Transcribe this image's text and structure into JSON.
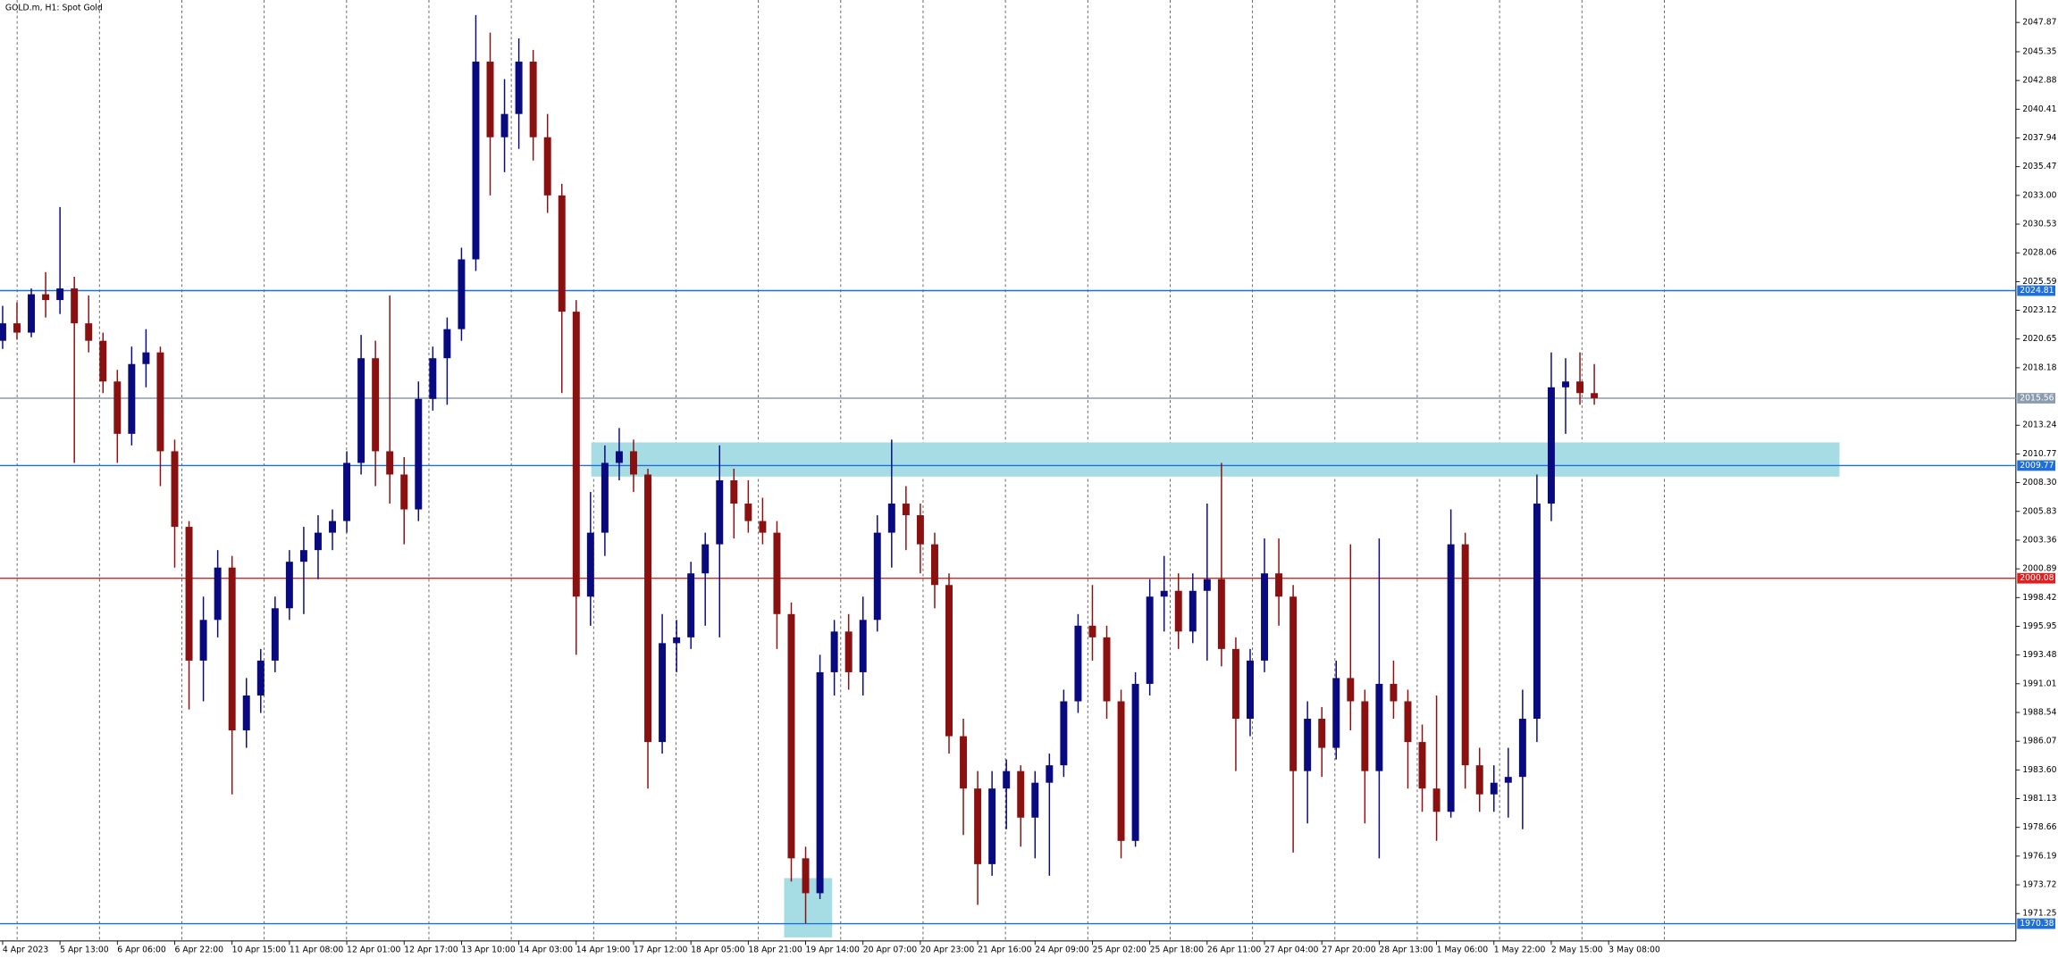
{
  "chart_data": {
    "type": "candlestick",
    "title": "GOLD.m, H1:  Spot Gold",
    "up_color": "#0a0a80",
    "down_color": "#8b1010",
    "open": [
      2020.5,
      2022.0,
      2021.2,
      2024.5,
      2024.0,
      2025.0,
      2022.0,
      2020.5,
      2017.0,
      2012.5,
      2018.5,
      2019.5,
      2011.0,
      2004.5,
      1993.0,
      1996.5,
      2001.0,
      1987.0,
      1990.0,
      1993.0,
      1997.5,
      2001.5,
      2002.5,
      2004.0,
      2005.0,
      2010.0,
      2019.0,
      2011.0,
      2009.0,
      2006.0,
      2015.5,
      2019.0,
      2021.5,
      2027.5,
      2044.5,
      2038.0,
      2040.0,
      2044.5,
      2038.0,
      2033.0,
      2023.0,
      1998.5,
      2004.0,
      2010.0,
      2011.0,
      2009.0,
      1986.0,
      1994.5,
      1995.0,
      2000.5,
      2003.0,
      2008.5,
      2006.5,
      2005.0,
      2004.0,
      1997.0,
      1976.0,
      1973.0,
      1992.0,
      1995.5,
      1992.0,
      1996.5,
      2004.0,
      2006.5,
      2005.5,
      2003.0,
      1999.5,
      1986.5,
      1982.0,
      1975.5,
      1982.0,
      1983.5,
      1979.5,
      1982.5,
      1984.0,
      1989.5,
      1996.0,
      1995.0,
      1989.5,
      1977.5,
      1991.0,
      1998.5,
      1999.0,
      1995.5,
      1999.0,
      2000.0,
      1994.0,
      1988.0,
      1993.0,
      2000.5,
      1998.5,
      1983.5,
      1988.0,
      1985.5,
      1991.5,
      1989.5,
      1983.5,
      1991.0,
      1989.5,
      1986.0,
      1982.0,
      1980.0,
      2003.0,
      1984.0,
      1981.5,
      1982.5,
      1983.0,
      1988.0,
      2006.5,
      2016.5,
      2017.0,
      2016.0
    ],
    "high": [
      2023.5,
      2023.8,
      2025.0,
      2026.4,
      2032.0,
      2026.0,
      2024.4,
      2021.2,
      2018.0,
      2020.0,
      2021.5,
      2020.0,
      2012.0,
      2005.0,
      1998.5,
      2002.5,
      2002.0,
      1991.5,
      1994.0,
      1998.5,
      2002.5,
      2004.5,
      2005.5,
      2006.0,
      2011.0,
      2021.0,
      2020.5,
      2024.4,
      2010.5,
      2017.0,
      2020.0,
      2022.5,
      2028.5,
      2048.5,
      2047.0,
      2043.0,
      2046.5,
      2045.5,
      2040.0,
      2034.0,
      2024.0,
      2007.5,
      2011.5,
      2013.0,
      2012.0,
      2009.5,
      1997.0,
      1996.5,
      2001.5,
      2004.0,
      2011.5,
      2009.5,
      2008.5,
      2007.0,
      2005.0,
      1998.0,
      1977.0,
      1993.5,
      1996.5,
      1997.0,
      1998.5,
      2005.5,
      2012.0,
      2008.0,
      2006.5,
      2004.0,
      2000.5,
      1988.0,
      1983.5,
      1983.5,
      1984.5,
      1984.0,
      1983.5,
      1985.0,
      1990.5,
      1997.0,
      1999.5,
      1996.0,
      1990.5,
      1992.0,
      2000.0,
      2002.0,
      2000.5,
      2000.5,
      2006.5,
      2010.0,
      1995.0,
      1994.0,
      2003.5,
      2003.5,
      1999.5,
      1989.5,
      1989.0,
      1993.0,
      2003.0,
      1990.5,
      2003.5,
      1993.0,
      1990.5,
      1987.5,
      1990.0,
      2006.0,
      2004.0,
      1985.5,
      1984.0,
      1985.5,
      1990.5,
      2009.0,
      2019.5,
      2019.0,
      2019.5,
      2018.5
    ],
    "low": [
      2019.8,
      2020.6,
      2020.8,
      2022.5,
      2022.8,
      2010.0,
      2019.5,
      2016.0,
      2010.0,
      2011.5,
      2016.5,
      2008.0,
      2001.0,
      1988.8,
      1989.5,
      1995.0,
      1981.5,
      1985.5,
      1988.5,
      1992.0,
      1996.5,
      1997.0,
      2000.0,
      2002.5,
      2004.0,
      2009.0,
      2008.0,
      2006.5,
      2003.0,
      2005.0,
      2014.5,
      2015.0,
      2020.5,
      2026.5,
      2033.0,
      2035.0,
      2037.0,
      2036.0,
      2031.5,
      2016.0,
      1993.5,
      1996.0,
      2002.0,
      2008.5,
      2007.5,
      1982.0,
      1985.0,
      1992.0,
      1994.0,
      1996.0,
      1995.0,
      2003.5,
      2004.0,
      2003.0,
      1994.0,
      1974.0,
      1970.4,
      1972.5,
      1990.0,
      1990.5,
      1990.0,
      1995.5,
      2001.0,
      2002.5,
      2000.5,
      1997.5,
      1985.0,
      1978.0,
      1972.0,
      1974.5,
      1978.5,
      1977.0,
      1976.0,
      1974.5,
      1983.0,
      1988.5,
      1993.0,
      1988.0,
      1976.0,
      1977.0,
      1990.0,
      1995.5,
      1994.0,
      1994.5,
      1993.0,
      1992.5,
      1983.5,
      1986.5,
      1992.0,
      1996.0,
      1976.5,
      1979.0,
      1983.0,
      1984.5,
      1987.0,
      1979.0,
      1976.0,
      1988.0,
      1982.0,
      1980.0,
      1977.5,
      1979.5,
      1982.0,
      1980.0,
      1980.0,
      1979.5,
      1978.5,
      1986.0,
      2005.0,
      2012.5,
      2015.0,
      2015.0
    ],
    "close": [
      2022.0,
      2021.2,
      2024.5,
      2024.0,
      2025.0,
      2022.0,
      2020.5,
      2017.0,
      2012.5,
      2018.5,
      2019.5,
      2011.0,
      2004.5,
      1993.0,
      1996.5,
      2001.0,
      1987.0,
      1990.0,
      1993.0,
      1997.5,
      2001.5,
      2002.5,
      2004.0,
      2005.0,
      2010.0,
      2019.0,
      2011.0,
      2009.0,
      2006.0,
      2015.5,
      2019.0,
      2021.5,
      2027.5,
      2044.5,
      2038.0,
      2040.0,
      2044.5,
      2038.0,
      2033.0,
      2023.0,
      1998.5,
      2004.0,
      2010.0,
      2011.0,
      2009.0,
      1986.0,
      1994.5,
      1995.0,
      2000.5,
      2003.0,
      2008.5,
      2006.5,
      2005.0,
      2004.0,
      1997.0,
      1976.0,
      1973.0,
      1992.0,
      1995.5,
      1992.0,
      1996.5,
      2004.0,
      2006.5,
      2005.5,
      2003.0,
      1999.5,
      1986.5,
      1982.0,
      1975.5,
      1982.0,
      1983.5,
      1979.5,
      1982.5,
      1984.0,
      1989.5,
      1996.0,
      1995.0,
      1989.5,
      1977.5,
      1991.0,
      1998.5,
      1999.0,
      1995.5,
      1999.0,
      2000.0,
      1994.0,
      1988.0,
      1993.0,
      2000.5,
      1998.5,
      1983.5,
      1988.0,
      1985.5,
      1991.5,
      1989.5,
      1983.5,
      1991.0,
      1989.5,
      1986.0,
      1982.0,
      1980.0,
      2003.0,
      1984.0,
      1981.5,
      1982.5,
      1983.0,
      1988.0,
      2006.5,
      2016.5,
      2017.0,
      2016.0,
      2015.56
    ],
    "xlim": [
      0,
      140.4
    ],
    "xticks": [
      {
        "value": 0,
        "label": "4 Apr 2023"
      },
      {
        "value": 4,
        "label": "5 Apr 13:00"
      },
      {
        "value": 8,
        "label": "6 Apr 06:00"
      },
      {
        "value": 12,
        "label": "6 Apr 22:00"
      },
      {
        "value": 16,
        "label": "10 Apr 15:00"
      },
      {
        "value": 20,
        "label": "11 Apr 08:00"
      },
      {
        "value": 24,
        "label": "12 Apr 01:00"
      },
      {
        "value": 28,
        "label": "12 Apr 17:00"
      },
      {
        "value": 32,
        "label": "13 Apr 10:00"
      },
      {
        "value": 36,
        "label": "14 Apr 03:00"
      },
      {
        "value": 40,
        "label": "14 Apr 19:00"
      },
      {
        "value": 44,
        "label": "17 Apr 12:00"
      },
      {
        "value": 48,
        "label": "18 Apr 05:00"
      },
      {
        "value": 52,
        "label": "18 Apr 21:00"
      },
      {
        "value": 56,
        "label": "19 Apr 14:00"
      },
      {
        "value": 60,
        "label": "20 Apr 07:00"
      },
      {
        "value": 64,
        "label": "20 Apr 23:00"
      },
      {
        "value": 68,
        "label": "21 Apr 16:00"
      },
      {
        "value": 72,
        "label": "24 Apr 09:00"
      },
      {
        "value": 76,
        "label": "25 Apr 02:00"
      },
      {
        "value": 80,
        "label": "25 Apr 18:00"
      },
      {
        "value": 84,
        "label": "26 Apr 11:00"
      },
      {
        "value": 88,
        "label": "27 Apr 04:00"
      },
      {
        "value": 92,
        "label": "27 Apr 20:00"
      },
      {
        "value": 96,
        "label": "28 Apr 13:00"
      },
      {
        "value": 100,
        "label": "1 May 06:00"
      },
      {
        "value": 104,
        "label": "1 May 22:00"
      },
      {
        "value": 108,
        "label": "2 May 15:00"
      },
      {
        "value": 112,
        "label": "3 May 08:00"
      }
    ],
    "ylim": [
      1968.9,
      2049.8
    ],
    "yticks": [
      2047.87,
      2045.35,
      2042.88,
      2040.41,
      2037.94,
      2035.47,
      {
        "value": 2033,
        "label": "2033.00"
      },
      2030.53,
      2028.06,
      2025.59,
      2023.12,
      2020.65,
      2018.18,
      2013.24,
      2010.77,
      {
        "value": 2008.3,
        "label": "2008.30"
      },
      2005.83,
      2003.36,
      2000.89,
      1998.42,
      1995.95,
      1993.48,
      1991.01,
      1988.54,
      1986.07,
      {
        "value": 1983.6,
        "label": "1983.60"
      },
      1981.13,
      1978.66,
      1976.19,
      1973.72,
      1971.25
    ],
    "levels": [
      {
        "value": 2024.81,
        "color": "#1e6fd9"
      },
      {
        "value": 2015.56,
        "color": "#8c9cb0"
      },
      {
        "value": 2009.77,
        "color": "#1e6fd9"
      },
      {
        "value": 2000.08,
        "color": "#e02020"
      },
      {
        "value": 1970.38,
        "color": "#1e6fd9"
      }
    ],
    "zones": [
      {
        "x": [
          41.05,
          128.1
        ],
        "y": [
          2008.82,
          2011.76
        ],
        "color": "#a6dde4"
      },
      {
        "x": [
          54.5,
          57.85
        ],
        "y": [
          1969.2,
          1974.3
        ],
        "color": "#a6dde4"
      }
    ]
  }
}
